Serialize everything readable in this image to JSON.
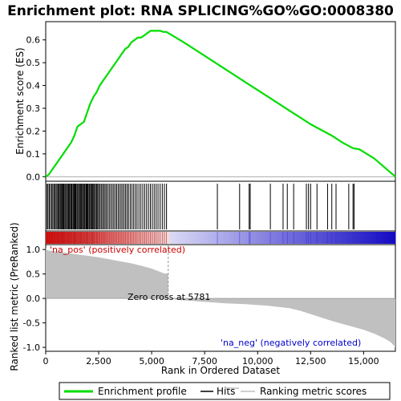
{
  "chart_data": {
    "type": "line",
    "title": "Enrichment plot: RNA SPLICING%GO%GO:0008380",
    "xlabel": "Rank in Ordered Dataset",
    "ylabel_top": "Enrichment score (ES)",
    "ylabel_bottom": "Ranked list metric (PreRanked)",
    "x_range": [
      0,
      16500
    ],
    "x_ticks": [
      0,
      2500,
      5000,
      7500,
      10000,
      12500,
      15000
    ],
    "x_tick_labels": [
      "0",
      "2,500",
      "5,000",
      "7,500",
      "10,000",
      "12,500",
      "15,000"
    ],
    "es_ylim": [
      -0.02,
      0.68
    ],
    "es_ticks": [
      0.0,
      0.1,
      0.2,
      0.3,
      0.4,
      0.5,
      0.6
    ],
    "es_tick_labels": [
      "0.0",
      "0.1",
      "0.2",
      "0.3",
      "0.4",
      "0.5",
      "0.6"
    ],
    "metric_ylim": [
      -1.08,
      1.1
    ],
    "metric_ticks": [
      1.0,
      0.5,
      0.0,
      -0.5,
      -1.0
    ],
    "metric_tick_labels": [
      "1.0",
      "0.5",
      "0.0",
      "-0.5",
      "-1.0"
    ],
    "annotations": {
      "pos_label": "'na_pos' (positively correlated)",
      "neg_label": "'na_neg' (negatively correlated)",
      "zero_cross": "Zero cross at 5781",
      "zero_cross_rank": 5781
    },
    "series": [
      {
        "name": "Enrichment profile",
        "color": "#00dd00",
        "x": [
          0,
          150,
          300,
          450,
          600,
          750,
          900,
          1050,
          1200,
          1350,
          1500,
          1650,
          1800,
          1950,
          2100,
          2250,
          2400,
          2550,
          2700,
          2850,
          3000,
          3150,
          3300,
          3450,
          3600,
          3750,
          3900,
          4050,
          4200,
          4350,
          4500,
          4650,
          4800,
          4950,
          5100,
          5250,
          5400,
          5550,
          5700,
          5781,
          6500,
          7500,
          8500,
          9500,
          10500,
          11500,
          12500,
          13500,
          14000,
          14500,
          14800,
          15500,
          16000,
          16500
        ],
        "y": [
          0.0,
          0.01,
          0.03,
          0.05,
          0.07,
          0.09,
          0.11,
          0.13,
          0.15,
          0.18,
          0.22,
          0.23,
          0.24,
          0.28,
          0.32,
          0.35,
          0.37,
          0.4,
          0.42,
          0.44,
          0.46,
          0.48,
          0.5,
          0.52,
          0.54,
          0.56,
          0.57,
          0.59,
          0.6,
          0.61,
          0.61,
          0.62,
          0.63,
          0.64,
          0.64,
          0.64,
          0.64,
          0.635,
          0.635,
          0.63,
          0.59,
          0.53,
          0.47,
          0.41,
          0.35,
          0.29,
          0.23,
          0.18,
          0.15,
          0.125,
          0.12,
          0.08,
          0.04,
          0.0
        ]
      },
      {
        "name": "Hits",
        "color": "#000000",
        "hits": [
          60,
          110,
          170,
          230,
          290,
          340,
          400,
          450,
          500,
          560,
          600,
          640,
          690,
          730,
          770,
          810,
          850,
          900,
          940,
          990,
          1030,
          1080,
          1120,
          1170,
          1210,
          1250,
          1300,
          1340,
          1380,
          1420,
          1470,
          1510,
          1560,
          1600,
          1650,
          1690,
          1730,
          1780,
          1820,
          1860,
          1910,
          1950,
          1990,
          2040,
          2080,
          2130,
          2170,
          2210,
          2260,
          2300,
          2350,
          2400,
          2450,
          2500,
          2560,
          2620,
          2680,
          2740,
          2800,
          2860,
          2930,
          3000,
          3070,
          3140,
          3210,
          3280,
          3350,
          3420,
          3490,
          3560,
          3630,
          3700,
          3770,
          3840,
          3910,
          3990,
          4070,
          4150,
          4230,
          4310,
          4400,
          4490,
          4580,
          4670,
          4760,
          4850,
          4940,
          5030,
          5120,
          5210,
          5300,
          5400,
          5500,
          5600,
          5700,
          8100,
          9150,
          9600,
          9650,
          10600,
          11200,
          11400,
          11700,
          12300,
          12400,
          12500,
          12800,
          13300,
          13500,
          13700,
          14300,
          14500,
          14550
        ]
      },
      {
        "name": "Ranking metric scores",
        "color": "#c0c0c0",
        "x": [
          0,
          100,
          500,
          1000,
          1500,
          2000,
          2500,
          3000,
          3500,
          4000,
          4500,
          5000,
          5300,
          5600,
          5781,
          6500,
          7500,
          8500,
          9500,
          10500,
          11500,
          12000,
          12500,
          13000,
          13500,
          14000,
          14500,
          15000,
          15500,
          16000,
          16300,
          16500
        ],
        "y": [
          1.03,
          0.98,
          0.96,
          0.93,
          0.9,
          0.87,
          0.84,
          0.8,
          0.76,
          0.72,
          0.67,
          0.61,
          0.56,
          0.51,
          0.0,
          -0.04,
          -0.07,
          -0.1,
          -0.12,
          -0.15,
          -0.2,
          -0.25,
          -0.32,
          -0.39,
          -0.46,
          -0.52,
          -0.58,
          -0.64,
          -0.72,
          -0.82,
          -0.9,
          -1.0
        ]
      }
    ],
    "legend": [
      "Enrichment profile",
      "Hits",
      "Ranking metric scores"
    ],
    "legend_position": "bottom"
  }
}
